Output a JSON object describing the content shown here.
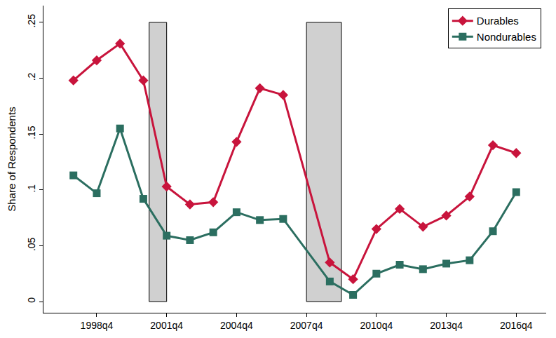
{
  "chart_data": {
    "type": "line",
    "y_label": "Share of Respondents",
    "categories": [
      null,
      "1998q4",
      null,
      null,
      "2001q4",
      null,
      null,
      "2004q4",
      null,
      null,
      "2007q4",
      null,
      null,
      "2010q4",
      null,
      null,
      "2013q4",
      null,
      null,
      "2016q4"
    ],
    "series": [
      {
        "name": "Durables",
        "color": "#c8143c",
        "marker": "diamond",
        "line_style": "solid",
        "values": [
          0.198,
          0.216,
          0.231,
          0.198,
          0.103,
          0.087,
          0.089,
          0.143,
          0.191,
          0.185,
          null,
          0.035,
          0.02,
          0.065,
          0.083,
          0.067,
          0.077,
          0.094,
          0.14,
          0.133
        ]
      },
      {
        "name": "Nondurables",
        "color": "#2b6e60",
        "marker": "square",
        "line_style": "solid",
        "values": [
          0.113,
          0.097,
          0.155,
          0.092,
          0.059,
          0.055,
          0.062,
          0.08,
          0.073,
          0.074,
          null,
          0.018,
          0.006,
          0.025,
          0.033,
          0.029,
          0.034,
          0.037,
          0.063,
          0.098
        ]
      }
    ],
    "shaded_spans": [
      {
        "x0": 3.25,
        "x1": 4,
        "y0": 0,
        "y1": 0.25
      },
      {
        "x0": 10,
        "x1": 11.5,
        "y0": 0,
        "y1": 0.25
      }
    ],
    "ylim": [
      -0.01,
      0.265
    ],
    "yticks": [
      {
        "value": 0,
        "label": "0"
      },
      {
        "value": 0.05,
        "label": ".05"
      },
      {
        "value": 0.1,
        "label": ".1"
      },
      {
        "value": 0.15,
        "label": ".15"
      },
      {
        "value": 0.2,
        "label": ".2"
      },
      {
        "value": 0.25,
        "label": ".25"
      }
    ],
    "grid": false,
    "legend": "upper right"
  }
}
